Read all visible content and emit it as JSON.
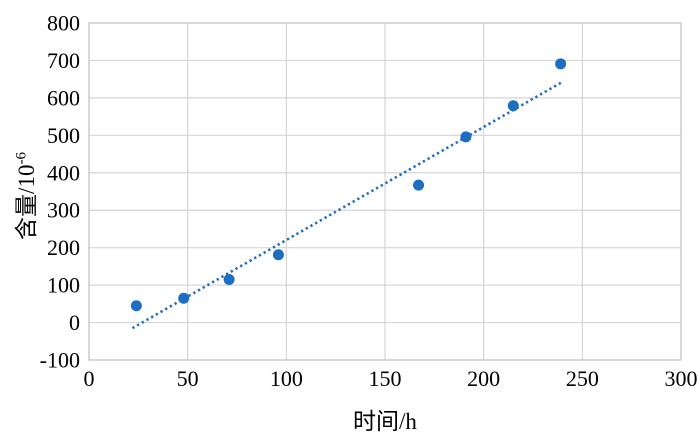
{
  "chart_data": {
    "type": "scatter",
    "title": "",
    "xlabel": "时间/h",
    "ylabel": "含量/10⁻⁶",
    "ylabel_base": "含量/10",
    "ylabel_sup": "-6",
    "xlim": [
      0,
      300
    ],
    "ylim": [
      -100,
      800
    ],
    "xticks": [
      0,
      50,
      100,
      150,
      200,
      250,
      300
    ],
    "yticks": [
      800,
      700,
      600,
      500,
      400,
      300,
      200,
      100,
      0,
      -100
    ],
    "grid": true,
    "legend": false,
    "colors": {
      "marker": "#1b6ec2",
      "trendline": "#1b6ec2",
      "gridline": "#d6d6d6",
      "plot_border": "#c4c4c4",
      "text": "#000000",
      "background": "#ffffff"
    },
    "series": [
      {
        "type": "scatter",
        "points": [
          [
            24,
            45
          ],
          [
            48,
            65
          ],
          [
            71,
            115
          ],
          [
            96,
            181
          ],
          [
            167,
            367
          ],
          [
            191,
            496
          ],
          [
            215,
            579
          ],
          [
            239,
            691
          ]
        ]
      },
      {
        "type": "trendline-dotted",
        "points": [
          [
            22,
            -15
          ],
          [
            240,
            643
          ]
        ]
      }
    ]
  }
}
